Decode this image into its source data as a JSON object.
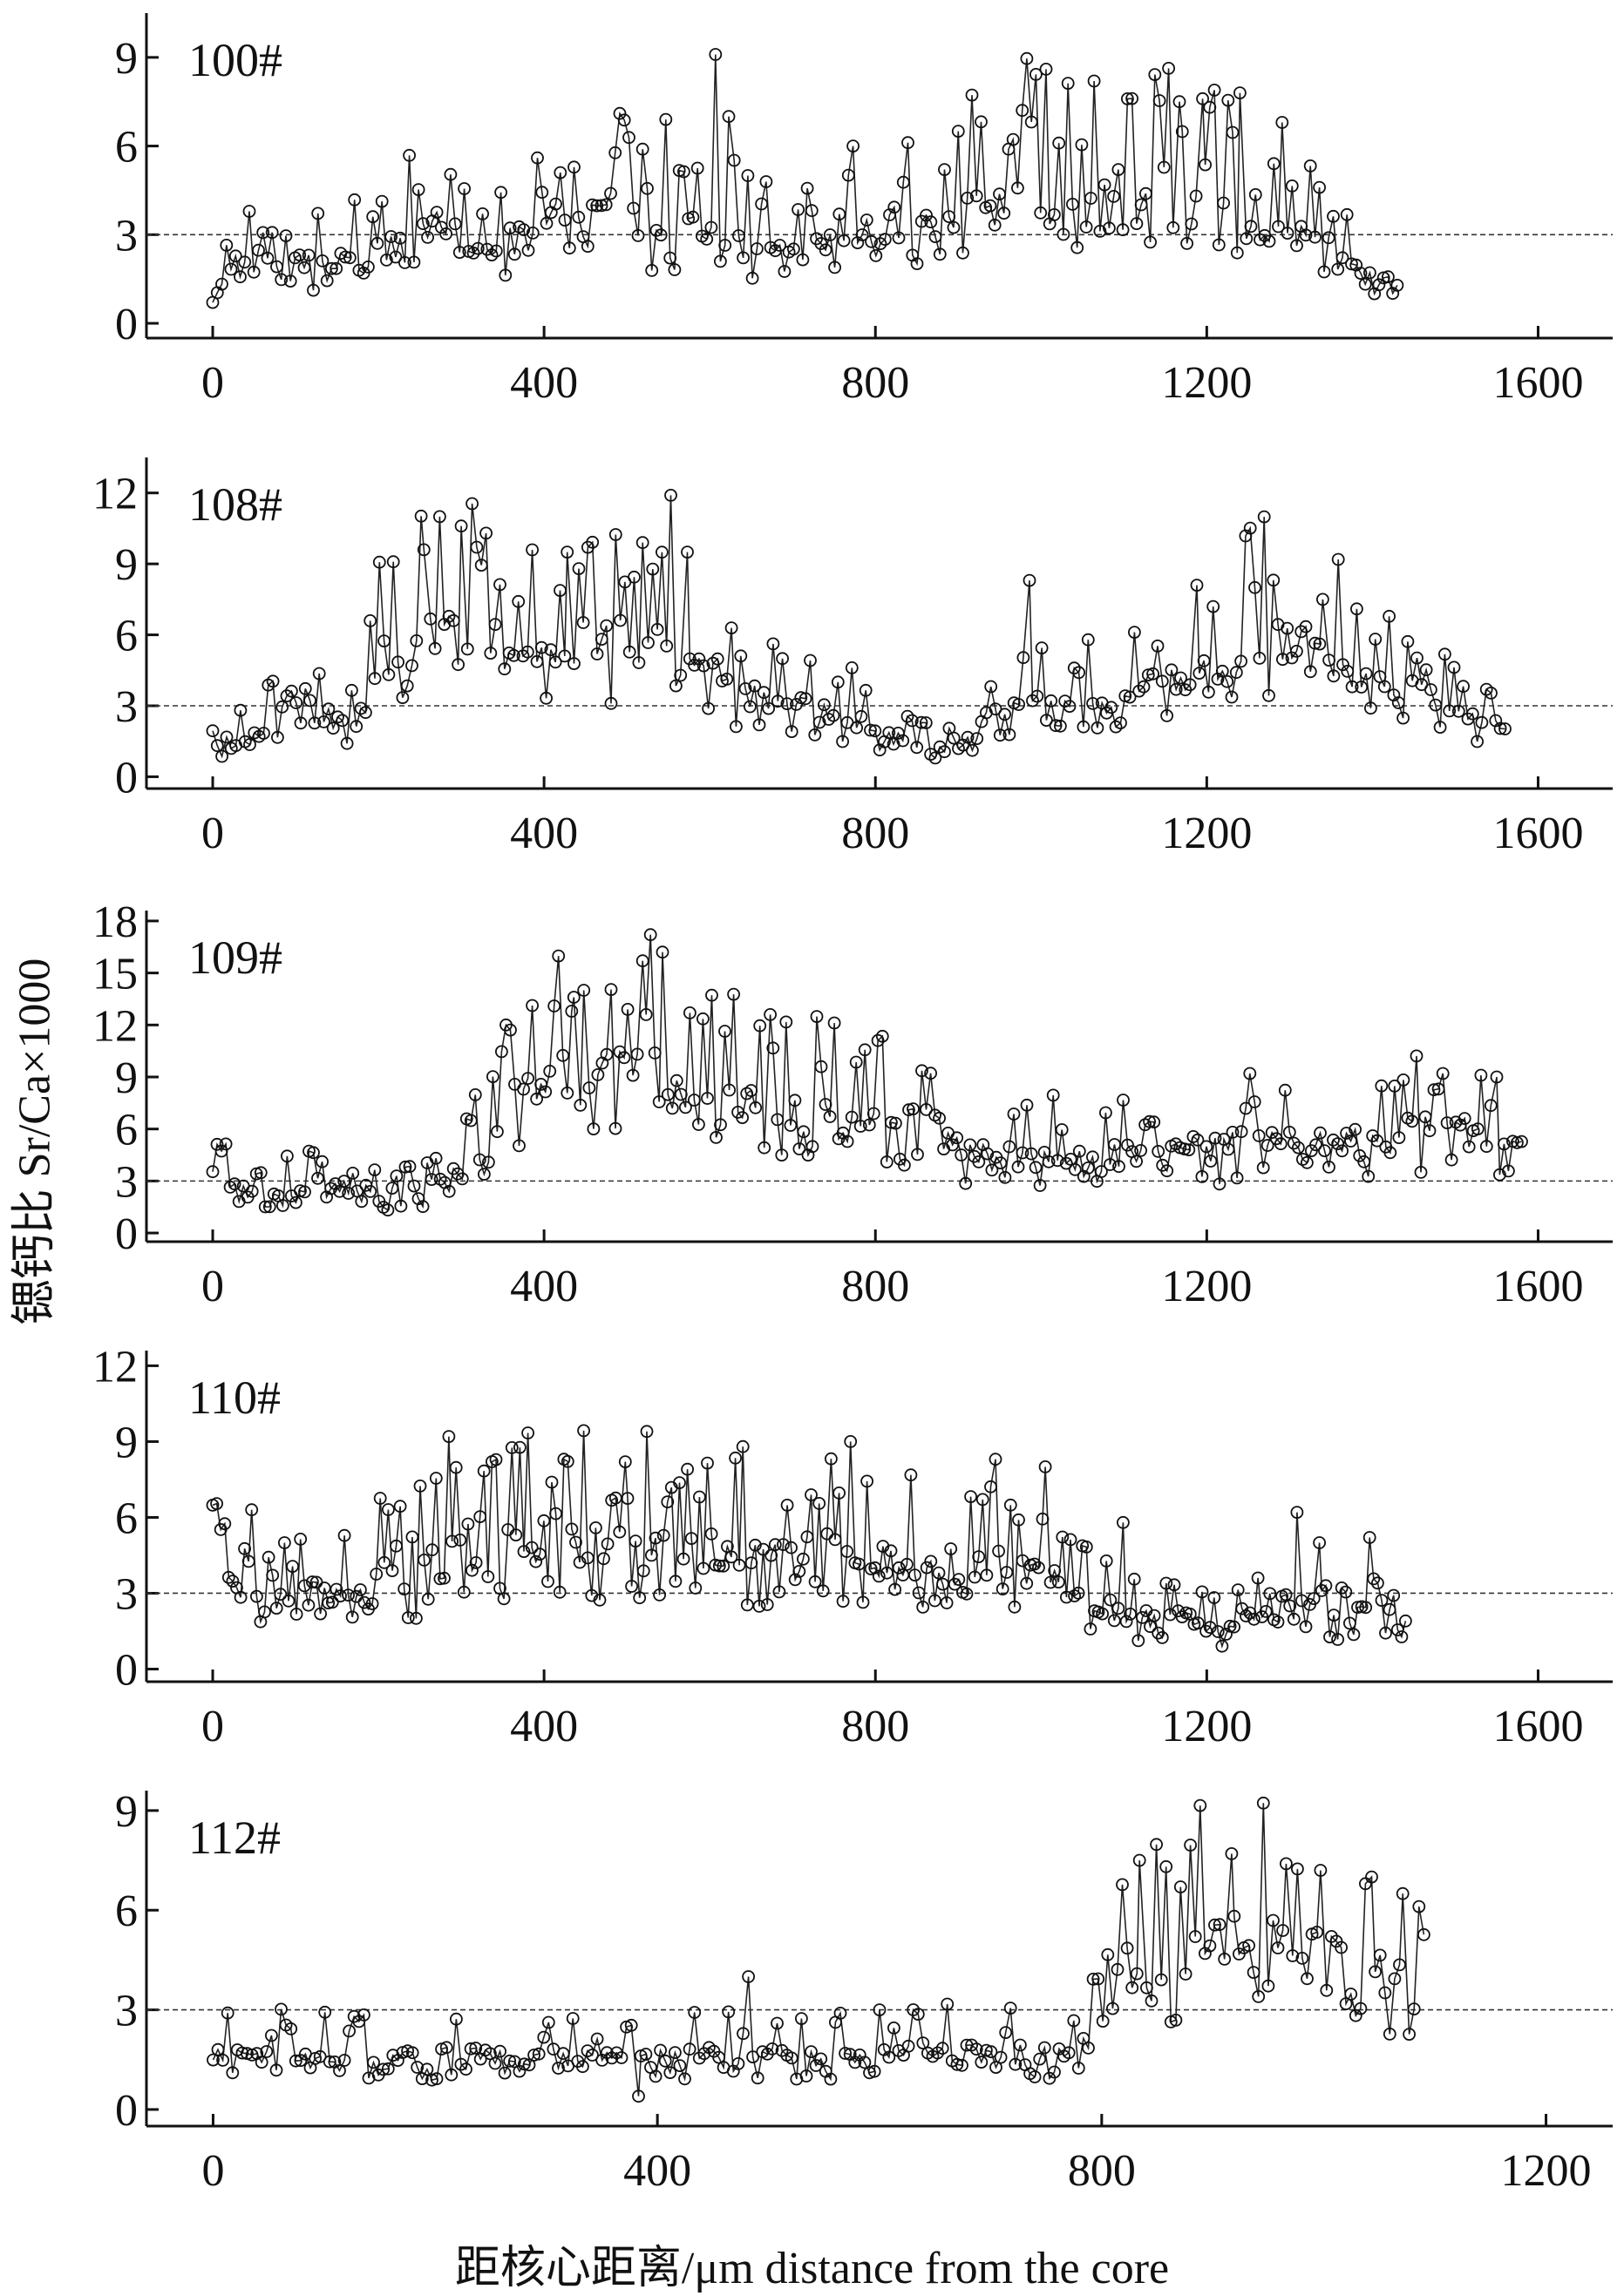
{
  "figure": {
    "ylabel": "锶钙比 Sr/Ca×1000",
    "xlabel": "距核心距离/μm distance from the core"
  },
  "chart_data": [
    {
      "type": "line",
      "title": "100#",
      "reference_line": 3,
      "xlim": [
        -80,
        1690
      ],
      "ylim": [
        -0.5,
        10.5
      ],
      "xticks": [
        0,
        400,
        800,
        1200,
        1600
      ],
      "yticks": [
        0,
        3,
        6,
        9
      ],
      "anchors": [
        [
          0,
          0.7
        ],
        [
          20,
          1.8
        ],
        [
          60,
          3.0
        ],
        [
          120,
          2.0
        ],
        [
          200,
          2.6
        ],
        [
          260,
          3.4
        ],
        [
          320,
          2.4
        ],
        [
          400,
          3.2
        ],
        [
          470,
          4.4
        ],
        [
          540,
          2.9
        ],
        [
          600,
          3.3
        ],
        [
          660,
          2.6
        ],
        [
          720,
          2.6
        ],
        [
          760,
          2.6
        ],
        [
          820,
          3.4
        ],
        [
          880,
          3.0
        ],
        [
          920,
          4.8
        ],
        [
          960,
          5.5
        ],
        [
          1000,
          4.5
        ],
        [
          1060,
          4.4
        ],
        [
          1120,
          4.5
        ],
        [
          1180,
          4.8
        ],
        [
          1250,
          4.2
        ],
        [
          1300,
          3.3
        ],
        [
          1340,
          2.6
        ],
        [
          1380,
          2.0
        ],
        [
          1430,
          1.5
        ]
      ],
      "spikes": [
        [
          607,
          9.1
        ],
        [
          623,
          7.0
        ],
        [
          1006,
          8.6
        ],
        [
          1064,
          8.2
        ],
        [
          1240,
          7.8
        ],
        [
          547,
          6.9
        ],
        [
          1167,
          7.5
        ],
        [
          1195,
          7.6
        ],
        [
          1291,
          6.8
        ],
        [
          773,
          6.0
        ],
        [
          900,
          6.5
        ],
        [
          1336,
          4.6
        ]
      ],
      "seed": 11,
      "n": 260
    },
    {
      "type": "line",
      "title": "108#",
      "reference_line": 3,
      "xlim": [
        -80,
        1690
      ],
      "ylim": [
        -0.5,
        13.5
      ],
      "xticks": [
        0,
        400,
        800,
        1200,
        1600
      ],
      "yticks": [
        0,
        3,
        6,
        9,
        12
      ],
      "anchors": [
        [
          0,
          1.4
        ],
        [
          40,
          1.5
        ],
        [
          80,
          2.5
        ],
        [
          100,
          3.5
        ],
        [
          140,
          2.5
        ],
        [
          180,
          2.5
        ],
        [
          200,
          5.0
        ],
        [
          260,
          6.0
        ],
        [
          300,
          6.5
        ],
        [
          360,
          5.2
        ],
        [
          420,
          5.5
        ],
        [
          480,
          5.6
        ],
        [
          540,
          6.0
        ],
        [
          600,
          5.2
        ],
        [
          640,
          3.4
        ],
        [
          700,
          3.0
        ],
        [
          760,
          2.6
        ],
        [
          820,
          1.8
        ],
        [
          860,
          1.3
        ],
        [
          900,
          1.4
        ],
        [
          940,
          2.5
        ],
        [
          980,
          3.2
        ],
        [
          1040,
          3.0
        ],
        [
          1100,
          3.4
        ],
        [
          1160,
          4.0
        ],
        [
          1220,
          5.0
        ],
        [
          1280,
          6.0
        ],
        [
          1340,
          5.2
        ],
        [
          1400,
          4.2
        ],
        [
          1460,
          3.4
        ],
        [
          1500,
          2.5
        ],
        [
          1560,
          2.6
        ]
      ],
      "spikes": [
        [
          553,
          11.9
        ],
        [
          300,
          10.6
        ],
        [
          330,
          10.3
        ],
        [
          519,
          9.9
        ],
        [
          573,
          9.5
        ],
        [
          255,
          9.6
        ],
        [
          428,
          9.5
        ],
        [
          442,
          8.8
        ],
        [
          986,
          8.3
        ],
        [
          1188,
          8.1
        ],
        [
          1258,
          8.0
        ],
        [
          1340,
          7.5
        ]
      ],
      "seed": 23,
      "n": 280
    },
    {
      "type": "line",
      "title": "109#",
      "reference_line": 3,
      "xlim": [
        -80,
        1690
      ],
      "ylim": [
        -0.5,
        18.6
      ],
      "xticks": [
        0,
        400,
        800,
        1200,
        1600
      ],
      "yticks": [
        0,
        3,
        6,
        9,
        12,
        15,
        18
      ],
      "anchors": [
        [
          0,
          3.0
        ],
        [
          60,
          2.0
        ],
        [
          120,
          2.8
        ],
        [
          180,
          2.4
        ],
        [
          240,
          2.4
        ],
        [
          280,
          3.0
        ],
        [
          320,
          5.0
        ],
        [
          360,
          7.2
        ],
        [
          400,
          8.5
        ],
        [
          460,
          9.5
        ],
        [
          520,
          9.3
        ],
        [
          560,
          8.5
        ],
        [
          620,
          8.0
        ],
        [
          680,
          7.5
        ],
        [
          740,
          6.6
        ],
        [
          800,
          6.2
        ],
        [
          860,
          6.2
        ],
        [
          900,
          5.0
        ],
        [
          940,
          4.2
        ],
        [
          1000,
          4.5
        ],
        [
          1060,
          4.2
        ],
        [
          1120,
          4.5
        ],
        [
          1200,
          5.0
        ],
        [
          1280,
          5.0
        ],
        [
          1340,
          5.2
        ],
        [
          1400,
          5.3
        ],
        [
          1460,
          5.8
        ],
        [
          1520,
          6.0
        ],
        [
          1580,
          4.5
        ]
      ],
      "spikes": [
        [
          543,
          16.2
        ],
        [
          519,
          15.7
        ],
        [
          448,
          14.0
        ],
        [
          436,
          13.6
        ],
        [
          576,
          12.7
        ],
        [
          501,
          12.9
        ],
        [
          673,
          12.6
        ],
        [
          803,
          11.1
        ],
        [
          1252,
          9.2
        ],
        [
          1485,
          9.2
        ],
        [
          1531,
          9.1
        ],
        [
          1550,
          9.0
        ]
      ],
      "seed": 37,
      "n": 300
    },
    {
      "type": "line",
      "title": "110#",
      "reference_line": 3,
      "xlim": [
        -80,
        1690
      ],
      "ylim": [
        -0.5,
        12.6
      ],
      "xticks": [
        0,
        400,
        800,
        1200,
        1600
      ],
      "yticks": [
        0,
        3,
        6,
        9,
        12
      ],
      "anchors": [
        [
          0,
          3.6
        ],
        [
          40,
          2.6
        ],
        [
          80,
          2.6
        ],
        [
          120,
          3.0
        ],
        [
          160,
          3.3
        ],
        [
          200,
          3.8
        ],
        [
          240,
          3.3
        ],
        [
          280,
          5.5
        ],
        [
          320,
          5.5
        ],
        [
          360,
          4.8
        ],
        [
          400,
          5.3
        ],
        [
          460,
          5.0
        ],
        [
          520,
          4.6
        ],
        [
          580,
          4.8
        ],
        [
          640,
          4.5
        ],
        [
          700,
          4.5
        ],
        [
          760,
          4.6
        ],
        [
          820,
          4.2
        ],
        [
          880,
          4.0
        ],
        [
          940,
          4.2
        ],
        [
          1000,
          3.6
        ],
        [
          1060,
          2.8
        ],
        [
          1120,
          2.0
        ],
        [
          1180,
          2.0
        ],
        [
          1220,
          1.6
        ],
        [
          1260,
          2.4
        ],
        [
          1300,
          3.0
        ],
        [
          1340,
          2.2
        ],
        [
          1380,
          1.5
        ],
        [
          1400,
          3.3
        ],
        [
          1440,
          1.4
        ]
      ],
      "spikes": [
        [
          285,
          9.2
        ],
        [
          524,
          9.4
        ],
        [
          770,
          9.0
        ],
        [
          640,
          8.8
        ],
        [
          424,
          8.3
        ],
        [
          498,
          8.2
        ],
        [
          945,
          8.3
        ],
        [
          1005,
          8.0
        ],
        [
          1309,
          6.2
        ],
        [
          1336,
          5.0
        ],
        [
          1099,
          5.8
        ],
        [
          47,
          6.3
        ]
      ],
      "seed": 53,
      "n": 300
    },
    {
      "type": "line",
      "title": "112#",
      "reference_line": 3,
      "xlim": [
        -60,
        1260
      ],
      "ylim": [
        -0.5,
        9.6
      ],
      "xticks": [
        0,
        400,
        800,
        1200
      ],
      "yticks": [
        0,
        3,
        6,
        9
      ],
      "anchors": [
        [
          0,
          1.7
        ],
        [
          100,
          1.6
        ],
        [
          200,
          1.6
        ],
        [
          300,
          1.6
        ],
        [
          380,
          1.5
        ],
        [
          440,
          1.6
        ],
        [
          500,
          1.6
        ],
        [
          560,
          1.6
        ],
        [
          640,
          1.7
        ],
        [
          700,
          1.7
        ],
        [
          780,
          1.7
        ],
        [
          800,
          2.6
        ],
        [
          820,
          4.3
        ],
        [
          860,
          4.4
        ],
        [
          900,
          5.0
        ],
        [
          960,
          5.0
        ],
        [
          1000,
          4.6
        ],
        [
          1040,
          4.5
        ],
        [
          1090,
          3.5
        ]
      ],
      "spikes": [
        [
          482,
          4.0
        ],
        [
          600,
          3.0
        ],
        [
          383,
          0.4
        ],
        [
          834,
          7.5
        ],
        [
          917,
          7.7
        ],
        [
          966,
          7.4
        ],
        [
          997,
          7.2
        ],
        [
          1043,
          7.0
        ],
        [
          1071,
          6.5
        ],
        [
          871,
          6.7
        ]
      ],
      "seed": 71,
      "n": 250
    }
  ]
}
